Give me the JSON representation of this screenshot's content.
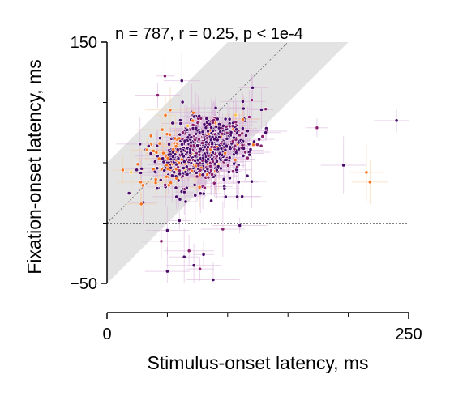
{
  "chart_data": {
    "type": "scatter",
    "annotation": "n = 787, r = 0.25, p < 1e-4",
    "xlabel": "Stimulus-onset latency, ms",
    "ylabel": "Fixation-onset latency, ms",
    "xlim": [
      0,
      250
    ],
    "ylim": [
      -50,
      150
    ],
    "xticks": [
      0,
      250
    ],
    "yticks": [
      -50,
      150
    ],
    "minor_xticks": [
      50,
      100,
      150,
      200
    ],
    "minor_yticks": [
      0,
      50,
      100
    ],
    "identity_line": true,
    "zero_reference_line": 0,
    "shaded_band": {
      "below": -50,
      "above": 50
    },
    "colors": {
      "band": "#e3e3e3",
      "err_purple": "#d9b3da",
      "err_orange": "#f6cf9c",
      "dark": "#4a0c6b",
      "mid": "#8a1f6e",
      "orange": "#f4711f",
      "yellow": "#f9c04a"
    },
    "outliers": [
      {
        "x": 240,
        "y": 85,
        "c": "dark"
      },
      {
        "x": 174,
        "y": 79,
        "c": "mid"
      },
      {
        "x": 196,
        "y": 48,
        "c": "dark"
      },
      {
        "x": 215,
        "y": 42,
        "c": "orange"
      },
      {
        "x": 218,
        "y": 34,
        "c": "orange"
      },
      {
        "x": 48,
        "y": 122,
        "c": "mid"
      },
      {
        "x": 62,
        "y": 118,
        "c": "dark"
      },
      {
        "x": 120,
        "y": 102,
        "c": "mid"
      },
      {
        "x": 128,
        "y": 94,
        "c": "dark"
      },
      {
        "x": 42,
        "y": 106,
        "c": "mid"
      },
      {
        "x": 13,
        "y": 44,
        "c": "orange"
      },
      {
        "x": 20,
        "y": 42,
        "c": "yellow"
      },
      {
        "x": 28,
        "y": 34,
        "c": "orange"
      },
      {
        "x": 50,
        "y": -40,
        "c": "dark"
      },
      {
        "x": 77,
        "y": -38,
        "c": "mid"
      },
      {
        "x": 88,
        "y": -47,
        "c": "dark"
      },
      {
        "x": 72,
        "y": -35,
        "c": "dark"
      },
      {
        "x": 68,
        "y": -23,
        "c": "mid"
      },
      {
        "x": 80,
        "y": -26,
        "c": "dark"
      },
      {
        "x": 64,
        "y": -28,
        "c": "dark"
      },
      {
        "x": 96,
        "y": -5,
        "c": "mid"
      },
      {
        "x": 110,
        "y": -2,
        "c": "dark"
      },
      {
        "x": 50,
        "y": -6,
        "c": "dark"
      },
      {
        "x": 45,
        "y": -15,
        "c": "mid"
      },
      {
        "x": 60,
        "y": 2,
        "c": "dark"
      },
      {
        "x": 112,
        "y": 22,
        "c": "dark"
      }
    ],
    "cluster": {
      "n": 760,
      "x_range": [
        15,
        132
      ],
      "x_center": 78,
      "x_spread": 20,
      "y_slope": 0.25,
      "y_intercept": 40,
      "y_spread": 14,
      "seed": 787
    }
  }
}
